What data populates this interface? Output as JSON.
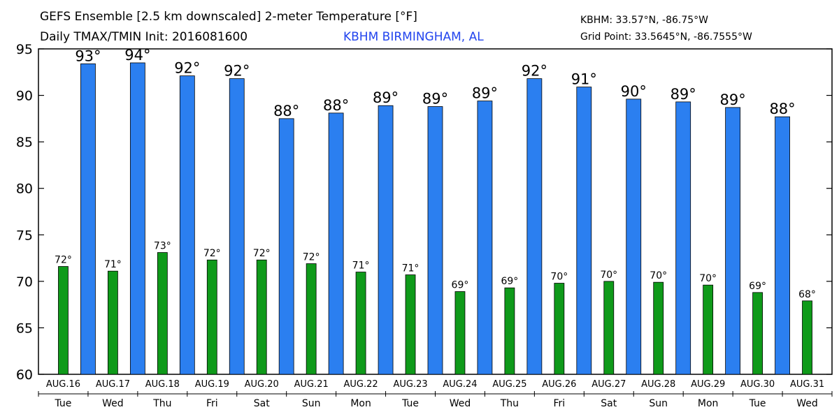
{
  "header": {
    "title": "GEFS Ensemble [2.5 km downscaled] 2-meter Temperature [°F]",
    "subtitle": "Daily TMAX/TMIN Init: 2016081600",
    "station": "KBHM BIRMINGHAM, AL",
    "station_coords": "KBHM: 33.57°N, -86.75°W",
    "grid_point": "Grid Point: 33.5645°N, -86.7555°W"
  },
  "colors": {
    "tmax": "#2b7ff0",
    "tmin": "#0f9a1a",
    "station_text": "#2244ee"
  },
  "chart_data": {
    "type": "bar",
    "title": "GEFS Ensemble [2.5 km downscaled] 2-meter Temperature [°F]",
    "categories": [
      "AUG.16",
      "AUG.17",
      "AUG.18",
      "AUG.19",
      "AUG.20",
      "AUG.21",
      "AUG.22",
      "AUG.23",
      "AUG.24",
      "AUG.25",
      "AUG.26",
      "AUG.27",
      "AUG.28",
      "AUG.29",
      "AUG.30",
      "AUG.31"
    ],
    "days": [
      "Tue",
      "Wed",
      "Thu",
      "Fri",
      "Sat",
      "Sun",
      "Mon",
      "Tue",
      "Wed",
      "Thu",
      "Fri",
      "Sat",
      "Sun",
      "Mon",
      "Tue",
      "Wed"
    ],
    "ylim": [
      60,
      95
    ],
    "yticks": [
      60,
      65,
      70,
      75,
      80,
      85,
      90,
      95
    ],
    "series": [
      {
        "key": "tmin",
        "values": [
          71.6,
          71.1,
          73.1,
          72.3,
          72.3,
          71.9,
          71.0,
          70.7,
          68.9,
          69.3,
          69.8,
          70.0,
          69.9,
          69.6,
          68.8,
          67.9
        ],
        "labels": [
          "72°",
          "71°",
          "73°",
          "72°",
          "72°",
          "72°",
          "71°",
          "71°",
          "69°",
          "69°",
          "70°",
          "70°",
          "70°",
          "70°",
          "69°",
          "68°"
        ]
      },
      {
        "key": "tmax",
        "values": [
          null,
          93.4,
          93.5,
          92.1,
          91.8,
          87.5,
          88.1,
          88.9,
          88.8,
          89.4,
          91.8,
          90.9,
          89.6,
          89.3,
          88.7,
          87.7
        ],
        "labels": [
          null,
          "93°",
          "94°",
          "92°",
          "92°",
          "88°",
          "88°",
          "89°",
          "89°",
          "89°",
          "92°",
          "91°",
          "90°",
          "89°",
          "89°",
          "88°"
        ]
      }
    ],
    "grid": false
  }
}
